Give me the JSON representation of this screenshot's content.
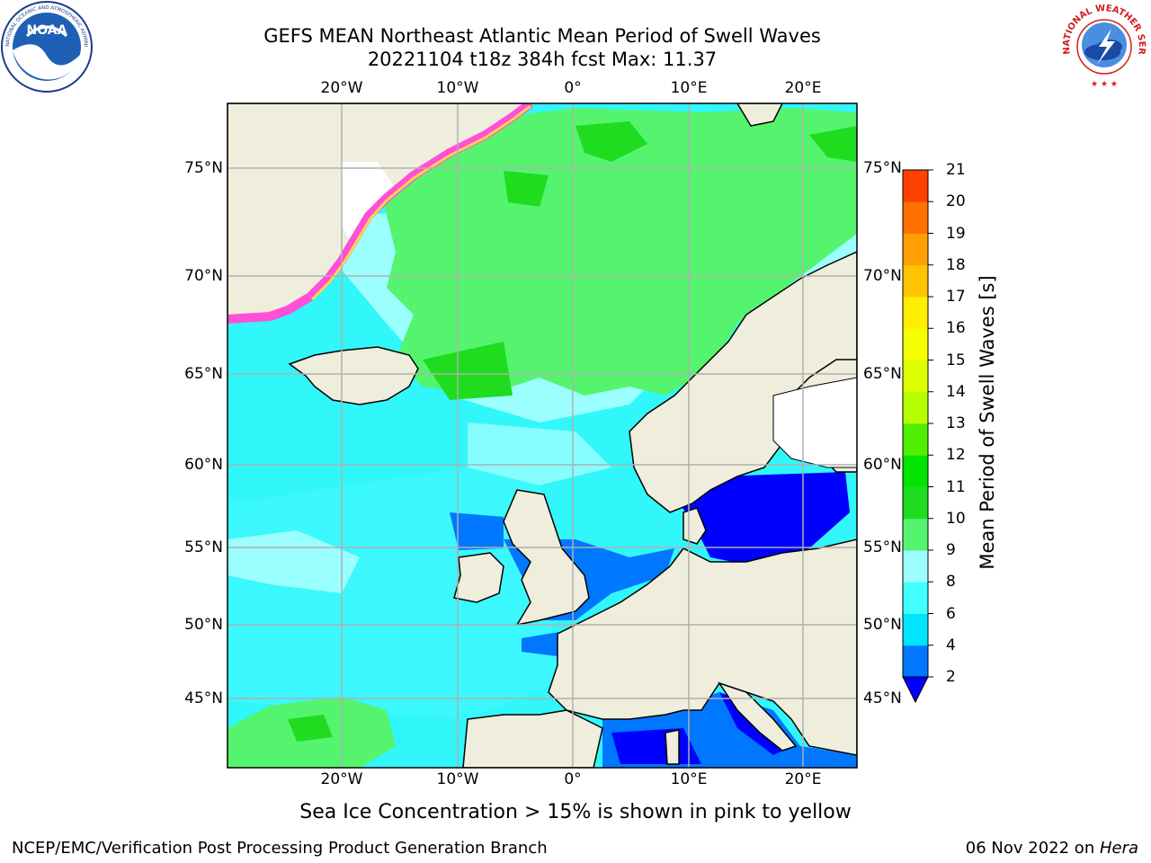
{
  "title": {
    "line1": "GEFS MEAN Northeast Atlantic Mean Period of Swell Waves",
    "line2": "20221104 t18z 384h fcst   Max: 11.37"
  },
  "logos": {
    "noaa_text": "NOAA",
    "noaa_ring": "NATIONAL OCEANIC AND ATMOSPHERIC ADMINISTRATION · U.S. DEPARTMENT OF COMMERCE",
    "nws_ring": "NATIONAL WEATHER SERVICE"
  },
  "map": {
    "lon_ticks": [
      "20°W",
      "10°W",
      "0°",
      "10°E",
      "20°E"
    ],
    "lat_ticks": [
      "75°N",
      "70°N",
      "65°N",
      "60°N",
      "55°N",
      "50°N",
      "45°N"
    ],
    "colors": {
      "land": "#efeddc",
      "ocean_base": "#31f6fa",
      "ice_pink": "#ff4fd8",
      "ice_yellow": "#ffd24d",
      "grid": "#b0b0b0"
    }
  },
  "colorbar": {
    "title": "Mean Period of Swell Waves [s]",
    "levels": [
      "2",
      "4",
      "6",
      "8",
      "9",
      "10",
      "11",
      "12",
      "13",
      "14",
      "15",
      "16",
      "17",
      "18",
      "19",
      "20",
      "21"
    ],
    "colors": [
      "#0077ff",
      "#00e5ff",
      "#40ffff",
      "#9cffff",
      "#55f46e",
      "#1fdc1f",
      "#00e400",
      "#50ee00",
      "#b5ff00",
      "#dcff00",
      "#f4ff00",
      "#ffee00",
      "#ffc400",
      "#ffa000",
      "#ff7200",
      "#ff4000",
      "#ff1400"
    ],
    "under_color": "#0000ff"
  },
  "note": "Sea Ice Concentration > 15% is shown in pink to yellow",
  "footer": {
    "left": "NCEP/EMC/Verification Post Processing Product Generation Branch",
    "right_date": "06 Nov 2022 on ",
    "right_host": "Hera"
  }
}
